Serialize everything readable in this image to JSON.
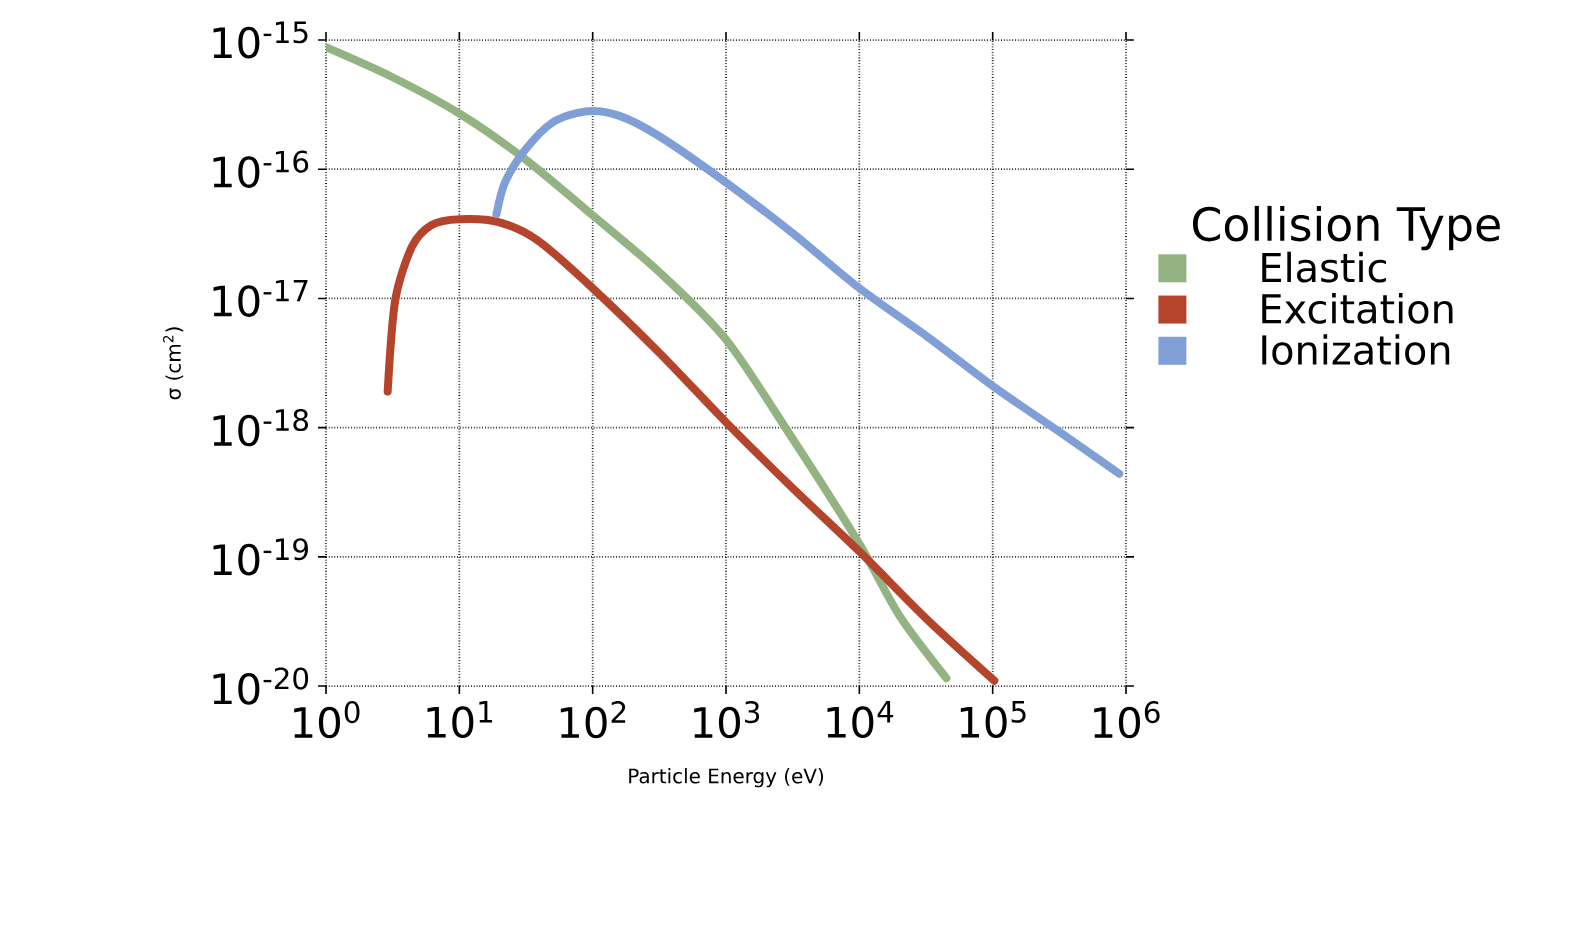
{
  "chart_data": {
    "type": "line",
    "xlabel": "Particle Energy (eV)",
    "ylabel": "σ (cm$^{2}$)",
    "legend_title": "Collision Type",
    "log": "xy",
    "grid": true,
    "legend": "right",
    "line_style": "solid",
    "marker": "none",
    "xlim": [
      1,
      1000000
    ],
    "ylim": [
      1e-20,
      1e-15
    ],
    "xticks": [
      {
        "value": 1,
        "label": "10$^{0}$"
      },
      {
        "value": 10,
        "label": "10$^{1}$"
      },
      {
        "value": 100,
        "label": "10$^{2}$"
      },
      {
        "value": 1000,
        "label": "10$^{3}$"
      },
      {
        "value": 10000,
        "label": "10$^{4}$"
      },
      {
        "value": 100000,
        "label": "10$^{5}$"
      },
      {
        "value": 1000000,
        "label": "10$^{6}$"
      }
    ],
    "yticks": [
      {
        "value": 1e-20,
        "label": "10$^{-20}$"
      },
      {
        "value": 1e-19,
        "label": "10$^{-19}$"
      },
      {
        "value": 1e-18,
        "label": "10$^{-18}$"
      },
      {
        "value": 1e-17,
        "label": "10$^{-17}$"
      },
      {
        "value": 1e-16,
        "label": "10$^{-16}$"
      },
      {
        "value": 1e-15,
        "label": "10$^{-15}$"
      }
    ],
    "series": [
      {
        "name": "Elastic",
        "color": "#93b383",
        "x": [
          1,
          3.1,
          10,
          31,
          100,
          316,
          1000,
          3160,
          10000,
          20000,
          45000
        ],
        "values": [
          8.8e-16,
          5.2e-16,
          2.7e-16,
          1.2e-16,
          4.4e-17,
          1.6e-17,
          4.8e-18,
          8.2e-19,
          1.26e-19,
          3.5e-20,
          1.15e-20
        ]
      },
      {
        "name": "Excitation",
        "color": "#b5442c",
        "x": [
          2.9,
          3.3,
          4.4,
          6.2,
          10,
          19.7,
          39,
          100,
          316,
          1000,
          3160,
          10000,
          32000,
          103000
        ],
        "values": [
          1.9e-18,
          9.6e-18,
          2.5e-17,
          3.7e-17,
          4.1e-17,
          3.9e-17,
          2.8e-17,
          1.2e-17,
          3.8e-18,
          1.1e-18,
          3.4e-19,
          1.1e-19,
          3.3e-20,
          1.1e-20
        ]
      },
      {
        "name": "Ionization",
        "color": "#7f9fd6",
        "x": [
          19,
          22,
          31,
          50,
          88,
          157,
          316,
          1000,
          3160,
          10000,
          32000,
          100000,
          320000,
          890000
        ],
        "values": [
          4.5e-17,
          7.9e-17,
          1.4e-16,
          2.3e-16,
          2.8e-16,
          2.6e-16,
          1.8e-16,
          7.9e-17,
          3.2e-17,
          1.2e-17,
          5.1e-18,
          2.1e-18,
          9.2e-19,
          4.4e-19
        ]
      }
    ]
  }
}
